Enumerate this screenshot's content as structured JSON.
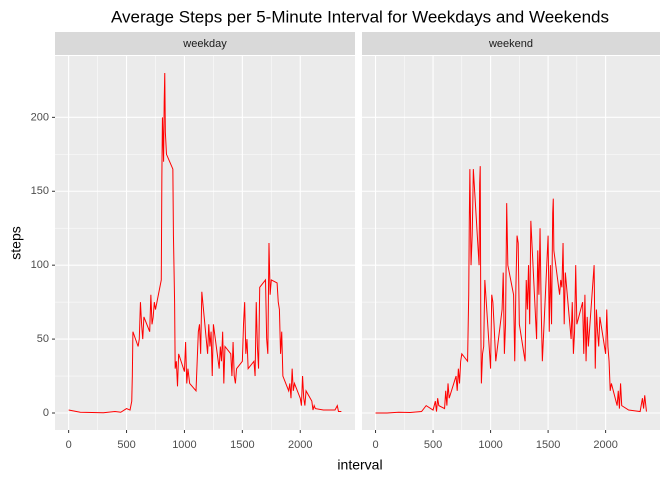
{
  "chart_data": {
    "type": "line",
    "title": "Average Steps per 5-Minute Interval for Weekdays and Weekends",
    "x_label": "interval",
    "y_label": "steps",
    "xlim": [
      -117.75,
      2472.75
    ],
    "xticks": [
      0,
      500,
      1000,
      1500,
      2000
    ],
    "ylim": [
      -11.5,
      241.5
    ],
    "yticks": [
      0,
      50,
      100,
      150,
      200
    ],
    "grid": true,
    "series": [
      {
        "name": "weekday",
        "color": "#ff0000",
        "x": [
          0,
          100,
          200,
          300,
          400,
          450,
          500,
          530,
          545,
          550,
          555,
          600,
          610,
          620,
          630,
          640,
          650,
          700,
          710,
          720,
          730,
          740,
          750,
          800,
          805,
          810,
          820,
          825,
          830,
          835,
          845,
          900,
          905,
          915,
          920,
          930,
          940,
          950,
          1000,
          1010,
          1020,
          1030,
          1045,
          1100,
          1110,
          1120,
          1130,
          1140,
          1150,
          1200,
          1210,
          1220,
          1230,
          1240,
          1250,
          1300,
          1310,
          1320,
          1330,
          1340,
          1350,
          1400,
          1410,
          1420,
          1430,
          1440,
          1450,
          1500,
          1510,
          1520,
          1530,
          1540,
          1550,
          1600,
          1610,
          1620,
          1630,
          1640,
          1650,
          1700,
          1710,
          1720,
          1730,
          1740,
          1750,
          1800,
          1810,
          1820,
          1830,
          1840,
          1850,
          1900,
          1910,
          1920,
          1930,
          1940,
          1950,
          2000,
          2010,
          2020,
          2030,
          2040,
          2050,
          2100,
          2110,
          2120,
          2130,
          2200,
          2300,
          2320,
          2330,
          2355
        ],
        "values": [
          2,
          0.5,
          0.3,
          0.2,
          1,
          0.5,
          3,
          2,
          8,
          25,
          55,
          45,
          50,
          75,
          60,
          50,
          65,
          55,
          80,
          60,
          65,
          75,
          70,
          90,
          160,
          200,
          170,
          210,
          230,
          190,
          175,
          165,
          120,
          75,
          30,
          35,
          18,
          40,
          28,
          48,
          20,
          30,
          20,
          15,
          35,
          55,
          60,
          40,
          82,
          40,
          60,
          45,
          55,
          25,
          60,
          30,
          45,
          35,
          55,
          20,
          45,
          40,
          25,
          48,
          25,
          20,
          30,
          35,
          60,
          75,
          40,
          50,
          30,
          35,
          25,
          75,
          45,
          30,
          85,
          90,
          50,
          40,
          115,
          80,
          90,
          88,
          75,
          70,
          40,
          55,
          25,
          15,
          20,
          10,
          30,
          15,
          20,
          10,
          5,
          25,
          10,
          5,
          15,
          8,
          2,
          5,
          3,
          2,
          2,
          5,
          1,
          1
        ]
      },
      {
        "name": "weekend",
        "color": "#ff0000",
        "x": [
          0,
          100,
          200,
          300,
          400,
          440,
          500,
          520,
          530,
          540,
          550,
          600,
          610,
          620,
          630,
          640,
          700,
          710,
          720,
          730,
          740,
          750,
          800,
          810,
          815,
          820,
          830,
          840,
          845,
          850,
          900,
          905,
          910,
          915,
          920,
          930,
          940,
          950,
          1000,
          1010,
          1020,
          1030,
          1045,
          1100,
          1110,
          1120,
          1130,
          1140,
          1150,
          1200,
          1210,
          1220,
          1230,
          1240,
          1250,
          1300,
          1310,
          1320,
          1330,
          1340,
          1350,
          1400,
          1410,
          1420,
          1430,
          1440,
          1450,
          1500,
          1510,
          1520,
          1530,
          1540,
          1545,
          1550,
          1600,
          1610,
          1620,
          1630,
          1640,
          1650,
          1700,
          1710,
          1720,
          1730,
          1740,
          1750,
          1800,
          1810,
          1820,
          1830,
          1840,
          1850,
          1900,
          1910,
          1920,
          1930,
          1940,
          1950,
          2000,
          2010,
          2020,
          2030,
          2040,
          2050,
          2100,
          2110,
          2120,
          2130,
          2140,
          2200,
          2300,
          2320,
          2330,
          2340,
          2355
        ],
        "values": [
          0,
          0,
          0.5,
          0.3,
          1,
          5,
          2,
          8,
          1,
          10,
          5,
          3,
          15,
          5,
          20,
          10,
          25,
          15,
          30,
          20,
          35,
          40,
          35,
          80,
          130,
          165,
          100,
          120,
          140,
          165,
          100,
          155,
          167,
          60,
          20,
          40,
          45,
          90,
          30,
          80,
          75,
          60,
          35,
          70,
          95,
          40,
          60,
          142,
          100,
          80,
          35,
          85,
          120,
          115,
          60,
          35,
          90,
          70,
          100,
          60,
          130,
          50,
          110,
          80,
          125,
          70,
          35,
          120,
          55,
          100,
          60,
          135,
          145,
          110,
          80,
          90,
          85,
          115,
          60,
          95,
          50,
          75,
          40,
          55,
          100,
          60,
          75,
          40,
          80,
          35,
          65,
          45,
          100,
          30,
          70,
          55,
          45,
          65,
          40,
          70,
          45,
          35,
          15,
          20,
          5,
          15,
          3,
          20,
          5,
          2,
          1,
          10,
          3,
          12,
          1
        ]
      }
    ]
  }
}
